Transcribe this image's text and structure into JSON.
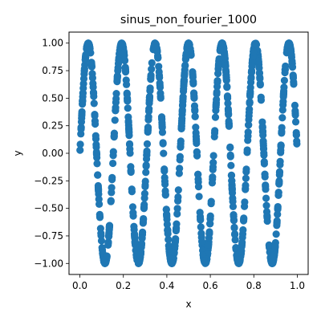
{
  "chart_data": {
    "type": "scatter",
    "title": "sinus_non_fourier_1000",
    "xlabel": "x",
    "ylabel": "y",
    "xlim": [
      -0.05,
      1.05
    ],
    "ylim": [
      -1.1,
      1.1
    ],
    "xticks": [
      "0.0",
      "0.2",
      "0.4",
      "0.6",
      "0.8",
      "1.0"
    ],
    "yticks": [
      "-1.00",
      "-0.75",
      "-0.50",
      "-0.25",
      "0.00",
      "0.25",
      "0.50",
      "0.75",
      "1.00"
    ],
    "grid": false,
    "legend": "none",
    "n_points": 1000,
    "function": "y = sin(2*pi*6.5*x), x uniformly sampled on [0, 1]",
    "marker_color": "#1f77b4"
  }
}
